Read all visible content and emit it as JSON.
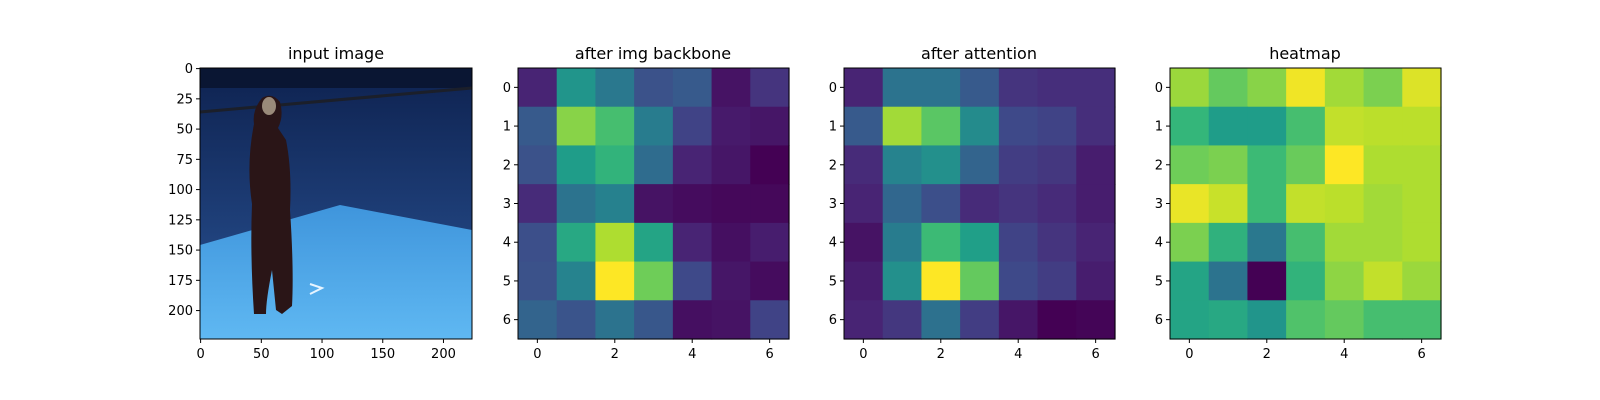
{
  "chart_data": [
    {
      "type": "image",
      "title": "input image",
      "xticks": [
        "0",
        "50",
        "100",
        "150",
        "200"
      ],
      "yticks": [
        "0",
        "25",
        "50",
        "75",
        "100",
        "125",
        "150",
        "175",
        "200"
      ],
      "xlim": [
        -0.5,
        223.5
      ],
      "ylim": [
        223.5,
        -0.5
      ],
      "description_colors": {
        "backdrop": "#1d3f7a",
        "floor": "#4aa3e0",
        "figure": "#2a1a1c"
      }
    },
    {
      "type": "heatmap",
      "title": "after img backbone",
      "colormap": "viridis",
      "xticks": [
        "0",
        "2",
        "4",
        "6"
      ],
      "yticks": [
        "0",
        "1",
        "2",
        "3",
        "4",
        "5",
        "6"
      ],
      "values": [
        [
          0.1,
          0.52,
          0.4,
          0.25,
          0.28,
          0.05,
          0.15
        ],
        [
          0.28,
          0.82,
          0.7,
          0.42,
          0.2,
          0.07,
          0.06
        ],
        [
          0.25,
          0.55,
          0.65,
          0.35,
          0.1,
          0.06,
          0.0
        ],
        [
          0.12,
          0.38,
          0.44,
          0.05,
          0.03,
          0.02,
          0.02
        ],
        [
          0.24,
          0.6,
          0.88,
          0.58,
          0.1,
          0.04,
          0.08
        ],
        [
          0.25,
          0.45,
          1.0,
          0.78,
          0.22,
          0.06,
          0.03
        ],
        [
          0.32,
          0.26,
          0.38,
          0.27,
          0.04,
          0.05,
          0.2
        ]
      ]
    },
    {
      "type": "heatmap",
      "title": "after attention",
      "colormap": "viridis",
      "xticks": [
        "0",
        "2",
        "4",
        "6"
      ],
      "yticks": [
        "0",
        "1",
        "2",
        "3",
        "4",
        "5",
        "6"
      ],
      "values": [
        [
          0.1,
          0.38,
          0.38,
          0.28,
          0.15,
          0.13,
          0.13
        ],
        [
          0.28,
          0.86,
          0.74,
          0.48,
          0.22,
          0.2,
          0.13
        ],
        [
          0.12,
          0.45,
          0.5,
          0.32,
          0.18,
          0.16,
          0.08
        ],
        [
          0.1,
          0.33,
          0.24,
          0.12,
          0.15,
          0.12,
          0.08
        ],
        [
          0.05,
          0.42,
          0.68,
          0.56,
          0.2,
          0.15,
          0.1
        ],
        [
          0.08,
          0.5,
          1.0,
          0.76,
          0.22,
          0.18,
          0.08
        ],
        [
          0.1,
          0.16,
          0.37,
          0.18,
          0.06,
          0.0,
          0.01
        ]
      ]
    },
    {
      "type": "heatmap",
      "title": "heatmap",
      "colormap": "viridis",
      "xticks": [
        "0",
        "2",
        "4",
        "6"
      ],
      "yticks": [
        "0",
        "1",
        "2",
        "3",
        "4",
        "5",
        "6"
      ],
      "values": [
        [
          0.85,
          0.76,
          0.82,
          0.98,
          0.86,
          0.8,
          0.95
        ],
        [
          0.66,
          0.55,
          0.55,
          0.7,
          0.91,
          0.9,
          0.9
        ],
        [
          0.78,
          0.8,
          0.68,
          0.77,
          1.0,
          0.88,
          0.88
        ],
        [
          0.97,
          0.92,
          0.68,
          0.91,
          0.9,
          0.86,
          0.88
        ],
        [
          0.8,
          0.64,
          0.4,
          0.7,
          0.86,
          0.86,
          0.88
        ],
        [
          0.58,
          0.38,
          0.0,
          0.65,
          0.83,
          0.91,
          0.85
        ],
        [
          0.58,
          0.6,
          0.52,
          0.72,
          0.76,
          0.7,
          0.7
        ]
      ]
    }
  ]
}
